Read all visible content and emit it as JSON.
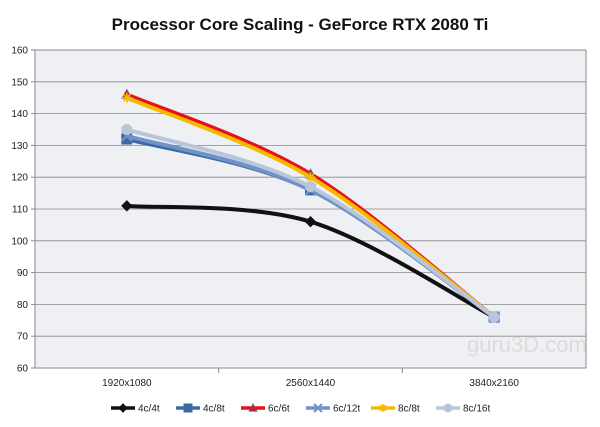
{
  "chart_data": {
    "type": "line",
    "title": "Processor Core Scaling - GeForce RTX 2080 Ti",
    "xlabel": "",
    "ylabel": "",
    "categories": [
      "1920x1080",
      "2560x1440",
      "3840x2160"
    ],
    "ylim": [
      60,
      160
    ],
    "yticks": [
      60,
      70,
      80,
      90,
      100,
      110,
      120,
      130,
      140,
      150,
      160
    ],
    "grid": true,
    "legend_position": "bottom",
    "watermark": "guru3D.com",
    "series": [
      {
        "name": "4c/4t",
        "values": [
          111,
          106,
          76
        ],
        "color": "#111111",
        "marker": "diamond"
      },
      {
        "name": "4c/8t",
        "values": [
          132,
          116,
          76
        ],
        "color": "#3d68a3",
        "marker": "square"
      },
      {
        "name": "6c/6t",
        "values": [
          146,
          121,
          76
        ],
        "color": "#e8101a",
        "marker": "triangle"
      },
      {
        "name": "6c/12t",
        "values": [
          133,
          116,
          76
        ],
        "color": "#6f93c8",
        "marker": "x"
      },
      {
        "name": "8c/8t",
        "values": [
          145,
          120,
          76
        ],
        "color": "#f6b800",
        "marker": "star"
      },
      {
        "name": "8c/16t",
        "values": [
          135,
          117,
          76
        ],
        "color": "#b9c5db",
        "marker": "circle"
      }
    ]
  }
}
